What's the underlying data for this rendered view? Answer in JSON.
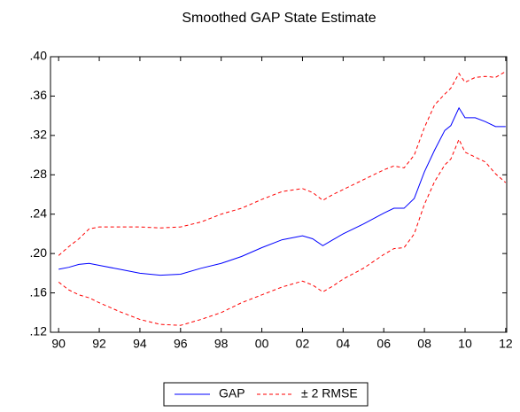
{
  "chart_data": {
    "type": "line",
    "title": "Smoothed GAP State Estimate",
    "x": [
      1990,
      1990.5,
      1991,
      1991.5,
      1992,
      1993,
      1994,
      1995,
      1996,
      1997,
      1998,
      1999,
      2000,
      2001,
      2002,
      2002.5,
      2003,
      2003.5,
      2004,
      2005,
      2006,
      2006.5,
      2007,
      2007.5,
      2008,
      2008.5,
      2009,
      2009.3,
      2009.7,
      2010,
      2010.5,
      2011,
      2011.5,
      2012
    ],
    "series": [
      {
        "name": "GAP",
        "color": "#0000ff",
        "values": [
          0.184,
          0.186,
          0.189,
          0.19,
          0.188,
          0.184,
          0.18,
          0.178,
          0.179,
          0.185,
          0.19,
          0.197,
          0.206,
          0.214,
          0.218,
          0.215,
          0.208,
          0.214,
          0.22,
          0.23,
          0.241,
          0.246,
          0.246,
          0.256,
          0.283,
          0.305,
          0.325,
          0.33,
          0.348,
          0.338,
          0.338,
          0.334,
          0.329,
          0.329
        ]
      }
    ],
    "band": {
      "name": "± 2 RMSE",
      "color": "#ff0000",
      "dashed": true,
      "upper": [
        0.198,
        0.207,
        0.215,
        0.225,
        0.227,
        0.227,
        0.227,
        0.226,
        0.227,
        0.232,
        0.24,
        0.246,
        0.255,
        0.263,
        0.266,
        0.262,
        0.254,
        0.26,
        0.265,
        0.275,
        0.285,
        0.289,
        0.287,
        0.3,
        0.328,
        0.351,
        0.362,
        0.368,
        0.383,
        0.374,
        0.379,
        0.38,
        0.379,
        0.385
      ],
      "lower": [
        0.171,
        0.163,
        0.158,
        0.155,
        0.15,
        0.141,
        0.133,
        0.128,
        0.127,
        0.133,
        0.14,
        0.15,
        0.158,
        0.166,
        0.172,
        0.168,
        0.161,
        0.167,
        0.174,
        0.185,
        0.199,
        0.205,
        0.206,
        0.22,
        0.25,
        0.273,
        0.29,
        0.296,
        0.316,
        0.303,
        0.298,
        0.293,
        0.281,
        0.272
      ]
    },
    "xlim": [
      1989.6,
      2012.05
    ],
    "xticks": [
      {
        "value": 1990,
        "label": "90"
      },
      {
        "value": 1992,
        "label": "92"
      },
      {
        "value": 1994,
        "label": "94"
      },
      {
        "value": 1996,
        "label": "96"
      },
      {
        "value": 1998,
        "label": "98"
      },
      {
        "value": 2000,
        "label": "00"
      },
      {
        "value": 2002,
        "label": "02"
      },
      {
        "value": 2004,
        "label": "04"
      },
      {
        "value": 2006,
        "label": "06"
      },
      {
        "value": 2008,
        "label": "08"
      },
      {
        "value": 2010,
        "label": "10"
      },
      {
        "value": 2012,
        "label": "12"
      }
    ],
    "ylim": [
      0.12,
      0.4
    ],
    "yticks": [
      {
        "value": 0.12,
        "label": ".12"
      },
      {
        "value": 0.16,
        "label": ".16"
      },
      {
        "value": 0.2,
        "label": ".20"
      },
      {
        "value": 0.24,
        "label": ".24"
      },
      {
        "value": 0.28,
        "label": ".28"
      },
      {
        "value": 0.32,
        "label": ".32"
      },
      {
        "value": 0.36,
        "label": ".36"
      },
      {
        "value": 0.4,
        "label": ".40"
      }
    ],
    "grid": false
  }
}
